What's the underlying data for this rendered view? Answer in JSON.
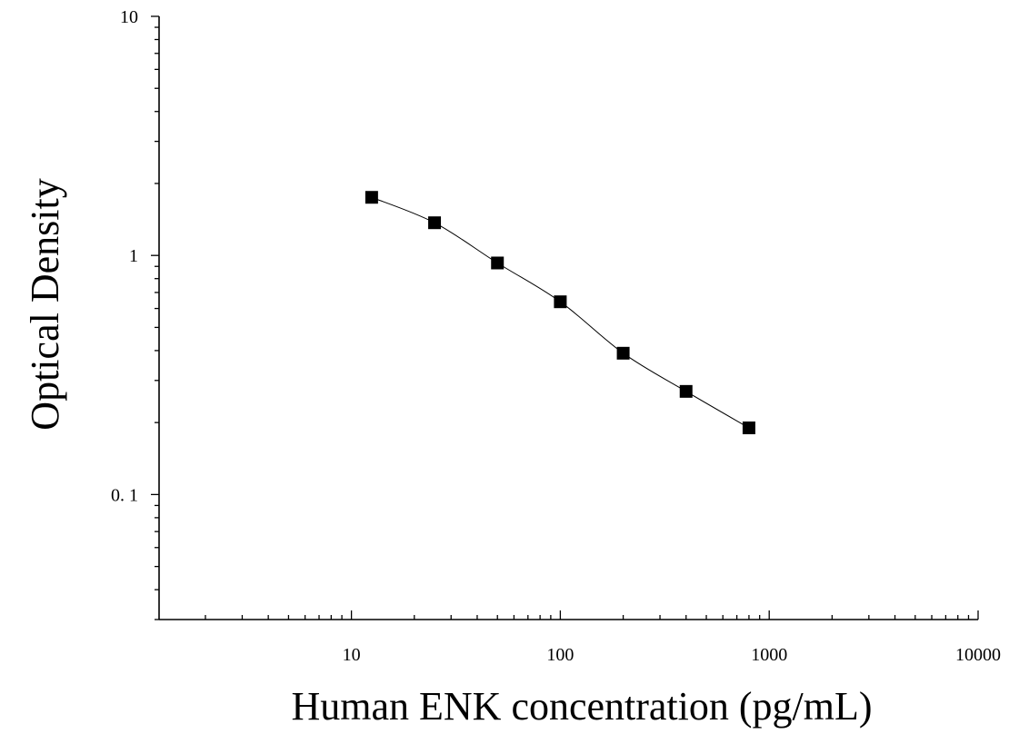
{
  "chart_data": {
    "type": "scatter",
    "xlabel": "Human ENK concentration (pg/mL)",
    "ylabel": "Optical Density",
    "x_scale": "log",
    "y_scale": "log",
    "xlim": [
      1.2,
      10000
    ],
    "ylim": [
      0.03,
      10
    ],
    "x_ticks": [
      "10",
      "100",
      "1000",
      "10000"
    ],
    "y_ticks": [
      "0. 1",
      "1",
      "10"
    ],
    "grid": false,
    "series": [
      {
        "x": [
          12.5,
          25,
          50,
          100,
          200,
          400,
          800
        ],
        "y": [
          1.75,
          1.37,
          0.93,
          0.64,
          0.39,
          0.27,
          0.19
        ],
        "marker": "square",
        "line": "smooth-fit"
      }
    ],
    "colors": {
      "marker": "#000000",
      "line": "#000000"
    }
  }
}
